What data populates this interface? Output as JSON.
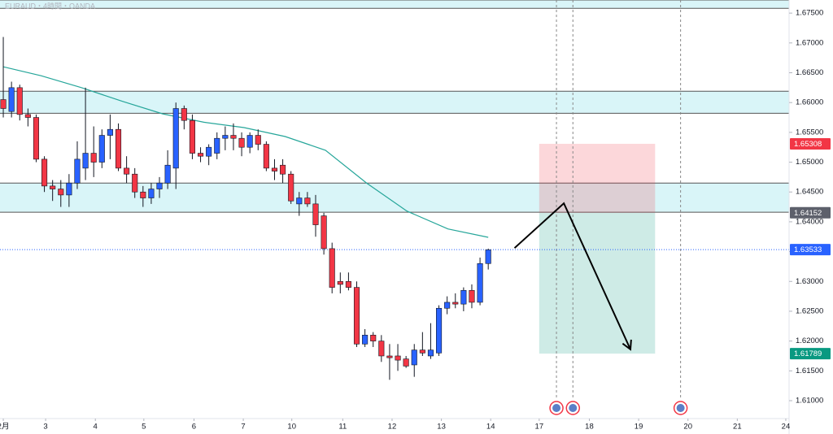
{
  "chart_data": {
    "type": "candlestick",
    "title": "EURAUD・4時間・OANDA",
    "x": [
      0,
      1,
      2,
      3,
      4,
      5,
      6,
      7,
      8,
      9,
      10,
      11,
      12,
      13,
      14,
      15,
      16,
      17,
      18,
      19,
      20,
      21,
      22,
      23,
      24,
      25,
      26,
      27,
      28,
      29,
      30,
      31,
      32,
      33,
      34,
      35,
      36,
      37,
      38,
      39,
      40,
      41,
      42,
      43,
      44,
      45,
      46,
      47,
      48,
      49,
      50,
      51,
      52,
      53,
      54,
      55,
      56,
      57,
      58,
      59
    ],
    "open": [
      1.6605,
      1.6585,
      1.6625,
      1.658,
      1.6575,
      1.6505,
      1.646,
      1.6455,
      1.6445,
      1.6465,
      1.649,
      1.6515,
      1.65,
      1.6545,
      1.6555,
      1.649,
      1.648,
      1.645,
      1.644,
      1.6455,
      1.6465,
      1.649,
      1.659,
      1.657,
      1.6515,
      1.651,
      1.6515,
      1.654,
      1.6545,
      1.654,
      1.6525,
      1.6545,
      1.653,
      1.649,
      1.6495,
      1.648,
      1.643,
      1.644,
      1.643,
      1.641,
      1.6355,
      1.63,
      1.63,
      1.629,
      1.6195,
      1.621,
      1.62,
      1.6175,
      1.6175,
      1.617,
      1.616,
      1.6185,
      1.6175,
      1.618,
      1.6255,
      1.6265,
      1.6262,
      1.6285,
      1.6265,
      1.633
    ],
    "high": [
      1.671,
      1.6635,
      1.663,
      1.659,
      1.658,
      1.651,
      1.647,
      1.647,
      1.648,
      1.6535,
      1.6625,
      1.656,
      1.6555,
      1.658,
      1.6565,
      1.651,
      1.649,
      1.646,
      1.6465,
      1.6475,
      1.652,
      1.66,
      1.6595,
      1.658,
      1.6525,
      1.653,
      1.655,
      1.656,
      1.6565,
      1.655,
      1.655,
      1.6555,
      1.6535,
      1.6505,
      1.6505,
      1.6485,
      1.645,
      1.645,
      1.6445,
      1.6415,
      1.6365,
      1.6315,
      1.6315,
      1.63,
      1.622,
      1.6215,
      1.621,
      1.6195,
      1.6195,
      1.6175,
      1.6195,
      1.6215,
      1.623,
      1.626,
      1.6275,
      1.628,
      1.629,
      1.6295,
      1.634,
      1.6355
    ],
    "low": [
      1.6575,
      1.6575,
      1.657,
      1.656,
      1.65,
      1.645,
      1.6435,
      1.6425,
      1.6425,
      1.6455,
      1.647,
      1.6475,
      1.649,
      1.6505,
      1.6485,
      1.6465,
      1.644,
      1.6425,
      1.643,
      1.644,
      1.6455,
      1.6455,
      1.6555,
      1.6505,
      1.65,
      1.6495,
      1.6505,
      1.652,
      1.652,
      1.651,
      1.6515,
      1.652,
      1.6485,
      1.647,
      1.6465,
      1.643,
      1.641,
      1.6425,
      1.6375,
      1.6345,
      1.628,
      1.628,
      1.6285,
      1.619,
      1.619,
      1.619,
      1.6165,
      1.6135,
      1.615,
      1.6155,
      1.614,
      1.6175,
      1.617,
      1.6175,
      1.6245,
      1.6255,
      1.625,
      1.6255,
      1.626,
      1.632
    ],
    "close": [
      1.659,
      1.6625,
      1.658,
      1.6575,
      1.6505,
      1.646,
      1.6455,
      1.6445,
      1.6465,
      1.6505,
      1.6515,
      1.65,
      1.6545,
      1.6555,
      1.649,
      1.648,
      1.645,
      1.644,
      1.6455,
      1.6465,
      1.6495,
      1.659,
      1.657,
      1.6515,
      1.651,
      1.6525,
      1.654,
      1.6545,
      1.654,
      1.6525,
      1.6545,
      1.653,
      1.649,
      1.6485,
      1.648,
      1.6435,
      1.644,
      1.643,
      1.6395,
      1.6355,
      1.629,
      1.6295,
      1.629,
      1.6195,
      1.621,
      1.62,
      1.6175,
      1.6172,
      1.6168,
      1.6158,
      1.6185,
      1.618,
      1.6185,
      1.6255,
      1.6265,
      1.6262,
      1.6285,
      1.6265,
      1.633,
      1.6353
    ],
    "up_color": "#2962ff",
    "down_color": "#f23645",
    "xlim": [
      -0.4,
      95.6
    ],
    "ylim": [
      1.607,
      1.6772
    ],
    "grid": false,
    "xticks": [
      {
        "value": 0,
        "label": "2月"
      },
      {
        "value": 5.15,
        "label": "3"
      },
      {
        "value": 11.2,
        "label": "4"
      },
      {
        "value": 17.1,
        "label": "5"
      },
      {
        "value": 23.2,
        "label": "6"
      },
      {
        "value": 29.2,
        "label": "7"
      },
      {
        "value": 35.1,
        "label": "10"
      },
      {
        "value": 41.3,
        "label": "11"
      },
      {
        "value": 47.3,
        "label": "12"
      },
      {
        "value": 53.3,
        "label": "13"
      },
      {
        "value": 59.3,
        "label": "14"
      },
      {
        "value": 65.2,
        "label": "17"
      },
      {
        "value": 71.3,
        "label": "18"
      },
      {
        "value": 77.3,
        "label": "19"
      },
      {
        "value": 83.3,
        "label": "20"
      },
      {
        "value": 89.3,
        "label": "21"
      },
      {
        "value": 95.2,
        "label": "24"
      }
    ],
    "yticks": [
      {
        "value": 1.61,
        "label": "1.61000"
      },
      {
        "value": 1.615,
        "label": "1.61500"
      },
      {
        "value": 1.62,
        "label": "1.62000"
      },
      {
        "value": 1.625,
        "label": "1.62500"
      },
      {
        "value": 1.63,
        "label": "1.63000"
      },
      {
        "value": 1.635,
        "label": "1.63500"
      },
      {
        "value": 1.64,
        "label": "1.64000"
      },
      {
        "value": 1.645,
        "label": "1.64500"
      },
      {
        "value": 1.65,
        "label": "1.65000"
      },
      {
        "value": 1.655,
        "label": "1.65500"
      },
      {
        "value": 1.66,
        "label": "1.66000"
      },
      {
        "value": 1.665,
        "label": "1.66500"
      },
      {
        "value": 1.67,
        "label": "1.67000"
      },
      {
        "value": 1.675,
        "label": "1.67500"
      }
    ],
    "moving_average": {
      "color": "#26a69a",
      "x": [
        0,
        4.6,
        9.5,
        14.5,
        19.4,
        24.4,
        29.3,
        34.3,
        39.2,
        44.2,
        49.1,
        54.1,
        59
      ],
      "values": [
        1.666,
        1.6645,
        1.6625,
        1.6602,
        1.6581,
        1.6567,
        1.6558,
        1.6543,
        1.652,
        1.6465,
        1.6418,
        1.6388,
        1.6374
      ]
    },
    "zones": [
      {
        "from": 1.6758,
        "to": 1.6772
      },
      {
        "from": 1.6582,
        "to": 1.6619
      },
      {
        "from": 1.6416,
        "to": 1.6465
      }
    ],
    "zone_color": "#d9f5f8",
    "position": {
      "x_start": 65.2,
      "x_end": 79.3,
      "entry": 1.64152,
      "stop": 1.65308,
      "target": 1.61789
    },
    "price": 1.63533,
    "projection": {
      "x": [
        62.2,
        68.2,
        76.3
      ],
      "values": [
        1.6356,
        1.6431,
        1.6186
      ]
    },
    "event_lines": [
      67.3,
      69.3,
      82.4
    ]
  }
}
